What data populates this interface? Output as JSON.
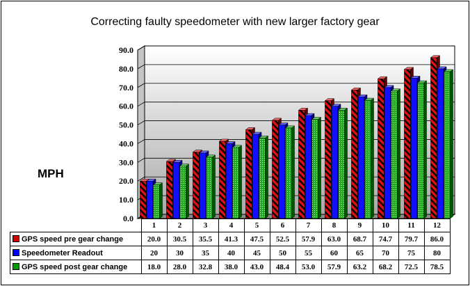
{
  "chart_data": {
    "type": "bar",
    "title": "Correcting faulty speedometer with new larger factory gear",
    "ylabel": "MPH",
    "xlabel": "",
    "ylim": [
      0,
      90
    ],
    "yticks": [
      "0.0",
      "10.0",
      "20.0",
      "30.0",
      "40.0",
      "50.0",
      "60.0",
      "70.0",
      "80.0",
      "90.0"
    ],
    "categories": [
      "1",
      "2",
      "3",
      "4",
      "5",
      "6",
      "7",
      "8",
      "9",
      "10",
      "11",
      "12"
    ],
    "grid": true,
    "legend": "data table below chart",
    "series": [
      {
        "name": "GPS speed pre gear change",
        "color": "#cc0000",
        "pattern": "diagonal black stripes",
        "values": [
          20.0,
          30.5,
          35.5,
          41.3,
          47.5,
          52.5,
          57.9,
          63.0,
          68.7,
          74.7,
          79.7,
          86.0
        ],
        "labels": [
          "20.0",
          "30.5",
          "35.5",
          "41.3",
          "47.5",
          "52.5",
          "57.9",
          "63.0",
          "68.7",
          "74.7",
          "79.7",
          "86.0"
        ]
      },
      {
        "name": "Speedometer Readout",
        "color": "#0000ff",
        "pattern": "solid",
        "values": [
          20,
          30,
          35,
          40,
          45,
          50,
          55,
          60,
          65,
          70,
          75,
          80
        ],
        "labels": [
          "20",
          "30",
          "35",
          "40",
          "45",
          "50",
          "55",
          "60",
          "65",
          "70",
          "75",
          "80"
        ]
      },
      {
        "name": "GPS speed post gear change",
        "color": "#009900",
        "pattern": "dotted",
        "values": [
          18.0,
          28.0,
          32.8,
          38.0,
          43.0,
          48.4,
          53.0,
          57.9,
          63.2,
          68.2,
          72.5,
          78.5
        ],
        "labels": [
          "18.0",
          "28.0",
          "32.8",
          "38.0",
          "43.0",
          "48.4",
          "53.0",
          "57.9",
          "63.2",
          "68.2",
          "72.5",
          "78.5"
        ]
      }
    ]
  }
}
